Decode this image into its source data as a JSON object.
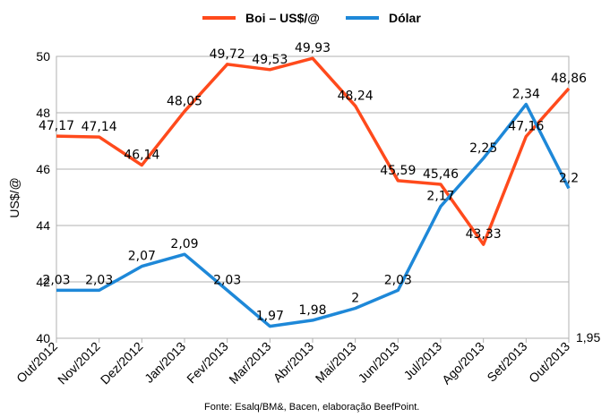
{
  "chart_data": {
    "type": "line",
    "categories": [
      "Out/2012",
      "Nov/2012",
      "Dez/2012",
      "Jan/2013",
      "Fev/2013",
      "Mar/2013",
      "Abr/2013",
      "Mai/2013",
      "Jun/2013",
      "Jul/2013",
      "Ago/2013",
      "Set/2013",
      "Out/2013"
    ],
    "series": [
      {
        "name": "Boi – US$/@",
        "color": "#ff4a1c",
        "values": [
          47.17,
          47.14,
          46.14,
          48.05,
          49.72,
          49.53,
          49.93,
          48.24,
          45.59,
          45.46,
          43.33,
          47.16,
          48.86
        ],
        "labels": [
          "47,17",
          "47,14",
          "46,14",
          "48,05",
          "49,72",
          "49,53",
          "49,93",
          "48,24",
          "45,59",
          "45,46",
          "43,33",
          "47,16",
          "48,86"
        ]
      },
      {
        "name": "Dólar",
        "color": "#1e88d8",
        "values": [
          2.03,
          2.03,
          2.07,
          2.09,
          2.03,
          1.97,
          1.98,
          2.0,
          2.03,
          2.17,
          2.25,
          2.34,
          2.2
        ],
        "labels": [
          "2,03",
          "2,03",
          "2,07",
          "2,09",
          "2,03",
          "1,97",
          "1,98",
          "2",
          "2,03",
          "2,17",
          "2,25",
          "2,34",
          "2,2"
        ]
      }
    ],
    "y_axis": {
      "label": "US$/@",
      "min": 40,
      "max": 50,
      "ticks": [
        "40",
        "42",
        "44",
        "46",
        "48",
        "50"
      ]
    },
    "secondary_axis": {
      "min": 1.95,
      "max": 2.42,
      "visible_tick": "1,95"
    },
    "grid": true,
    "legend_position": "top",
    "source": "Fonte: Esalq/BM&, Bacen, elaboração BeefPoint."
  }
}
